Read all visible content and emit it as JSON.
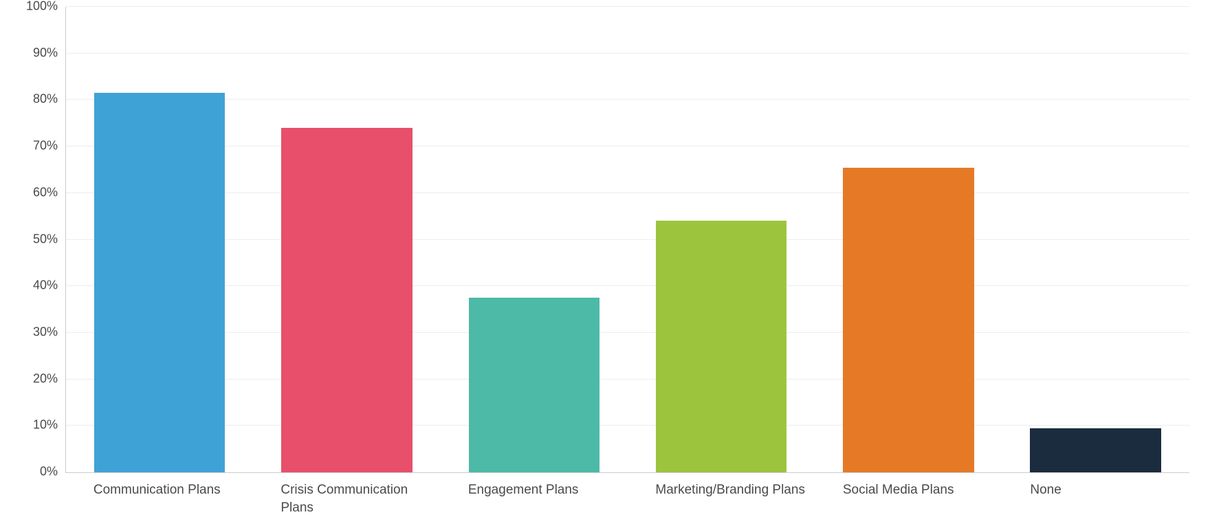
{
  "chart": {
    "type": "bar",
    "background_color": "#ffffff",
    "axis_color": "#cccccc",
    "grid_color": "#ededed",
    "tick_label_color": "#4a4a4a",
    "tick_label_fontsize": 18,
    "x_label_fontsize": 19,
    "ylim": [
      0,
      100
    ],
    "ytick_step": 10,
    "ytick_suffix": "%",
    "bar_width": 0.7,
    "categories": [
      "Communication Plans",
      "Crisis Communication Plans",
      "Engagement Plans",
      "Marketing/Branding Plans",
      "Social Media Plans",
      "None"
    ],
    "values": [
      81.5,
      74,
      37.5,
      54,
      65.5,
      9.5
    ],
    "bar_colors": [
      "#3fa2d6",
      "#e74f6b",
      "#4db9a7",
      "#9cc53d",
      "#e67926",
      "#1c2c3f"
    ]
  }
}
